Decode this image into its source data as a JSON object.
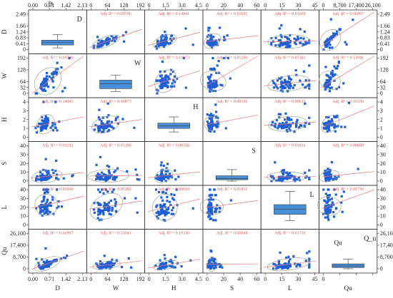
{
  "chart_data": {
    "type": "scatter_matrix",
    "variables": [
      {
        "id": "D",
        "label": "D",
        "range": [
          0,
          2.13
        ],
        "ticks": [
          0,
          0.71,
          1.42,
          2.13
        ],
        "tick_labels": [
          "0.00",
          "0.71",
          "1.42",
          "2.13"
        ],
        "yticks": [
          0,
          0.41,
          0.83,
          1.24,
          1.66,
          2.49
        ],
        "ytick_labels": [
          "0",
          "0.41",
          "0.83",
          "1.24",
          "1.66",
          "2.49"
        ],
        "box": {
          "whisker_low": 0.12,
          "q1": 0.32,
          "median": 0.49,
          "q3": 0.66,
          "whisker_high": 1.05
        }
      },
      {
        "id": "W",
        "label": "W",
        "range": [
          0,
          192
        ],
        "ticks": [
          0,
          64,
          128,
          192
        ],
        "tick_labels": [
          "0",
          "64",
          "128",
          "192"
        ],
        "yticks": [
          0,
          32,
          64,
          128,
          192
        ],
        "ytick_labels": [
          "0",
          "32",
          "64",
          "128",
          "192"
        ],
        "box": {
          "whisker_low": 10,
          "q1": 26,
          "median": 52,
          "q3": 72,
          "whisker_high": 100
        }
      },
      {
        "id": "H",
        "label": "H",
        "range": [
          0,
          4.5
        ],
        "ticks": [
          0,
          1.5,
          3.0,
          4.5
        ],
        "tick_labels": [
          "0",
          "1.5",
          "3.0",
          "4.5"
        ],
        "yticks": [
          0,
          1,
          2,
          3,
          4
        ],
        "ytick_labels": [
          "0",
          "1",
          "2",
          "3",
          "4"
        ],
        "box": {
          "whisker_low": 0.6,
          "q1": 1.0,
          "median": 1.3,
          "q3": 1.6,
          "whisker_high": 2.3
        }
      },
      {
        "id": "S",
        "label": "S",
        "range": [
          0,
          60
        ],
        "ticks": [
          0,
          20,
          40,
          60
        ],
        "tick_labels": [
          "0",
          "20",
          "40",
          "60"
        ],
        "yticks": [
          0,
          10,
          20,
          30,
          40
        ],
        "ytick_labels": [
          "0",
          "10",
          "20",
          "30",
          "40"
        ],
        "box": {
          "whisker_low": 0,
          "q1": 1.5,
          "median": 3,
          "q3": 6,
          "whisker_high": 13
        }
      },
      {
        "id": "L",
        "label": "L",
        "range": [
          0,
          45
        ],
        "ticks": [
          0,
          15,
          30,
          45
        ],
        "tick_labels": [
          "0",
          "15",
          "30",
          "45"
        ],
        "yticks": [
          0,
          10,
          20,
          30,
          40
        ],
        "ytick_labels": [
          "0",
          "10",
          "20",
          "30",
          "40"
        ],
        "box": {
          "whisker_low": 5,
          "q1": 12,
          "median": 18,
          "q3": 23,
          "whisker_high": 38
        }
      },
      {
        "id": "Qu",
        "label": "Qu",
        "xlabel": "Qu",
        "range": [
          0,
          26100
        ],
        "ticks": [
          0,
          8700,
          17400,
          26100
        ],
        "tick_labels": [
          "0",
          "8,700",
          "17,400",
          "26,100"
        ],
        "yticks": [
          0,
          8700,
          17400,
          26100
        ],
        "ytick_labels": [
          "0",
          "8,700",
          "17,400",
          "26,100"
        ],
        "box": {
          "whisker_low": 0,
          "q1": 900,
          "median": 2100,
          "q3": 3600,
          "whisker_high": 7200
        }
      }
    ],
    "r2_prefix": "Adj. R² = ",
    "adj_r2": [
      [
        null,
        0.69746,
        0.14941,
        0.01102,
        0.01669,
        0.66997
      ],
      [
        0.69746,
        null,
        0.10873,
        0.01206,
        0.05182,
        0.53941
      ],
      [
        0.14941,
        0.10873,
        null,
        0.00356,
        0.00619,
        0.19336
      ],
      [
        0.01102,
        0.01206,
        0.00356,
        null,
        0.01816,
        0.00849
      ],
      [
        0.01669,
        0.05182,
        0.00619,
        0.01816,
        null,
        0.01736
      ],
      [
        0.66997,
        0.53941,
        0.19336,
        0.00849,
        0.01736,
        null
      ]
    ],
    "diagonal_labels": [
      "D",
      "W",
      "H",
      "S",
      "L",
      "Q_u"
    ],
    "bottom_axis_labels": [
      "D",
      "W",
      "H",
      "S",
      "L",
      "Qu"
    ],
    "left_axis_labels": [
      "D",
      "W",
      "H",
      "S",
      "L",
      "Qu"
    ],
    "point_color": "#1f5fd6",
    "fit_line_color": "#e87a7a",
    "ellipse_color": "#9aa79a",
    "box_fill_color": "#4a90d9",
    "grid": false
  }
}
